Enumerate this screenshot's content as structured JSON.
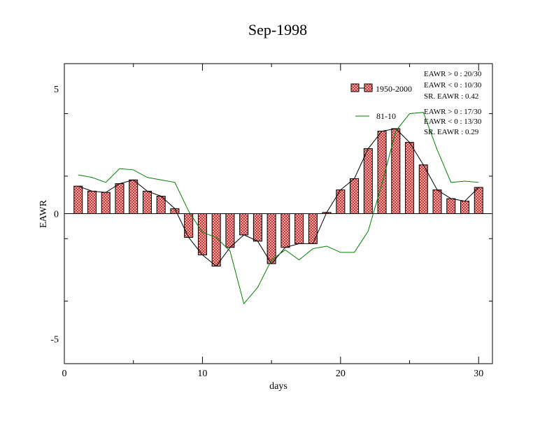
{
  "chart_data": {
    "type": "bar",
    "title": "Sep-1998",
    "xlabel": "days",
    "ylabel": "EAWR",
    "xlim": [
      0,
      31
    ],
    "ylim": [
      -6,
      6
    ],
    "x_ticks": [
      0,
      10,
      20,
      30
    ],
    "x_tick_labels": [
      "0",
      "10",
      "20",
      "30"
    ],
    "y_ticks": [
      -5,
      0,
      5
    ],
    "y_tick_labels": [
      "-5",
      "0",
      "5"
    ],
    "grid": false,
    "legend_position": "top-right",
    "x": [
      1,
      2,
      3,
      4,
      5,
      6,
      7,
      8,
      9,
      10,
      11,
      12,
      13,
      14,
      15,
      16,
      17,
      18,
      19,
      20,
      21,
      22,
      23,
      24,
      25,
      26,
      27,
      28,
      29,
      30
    ],
    "series": [
      {
        "name": "1950-2000",
        "kind": "bar",
        "color": "#e07070",
        "values": [
          1.1,
          0.9,
          0.85,
          1.2,
          1.35,
          0.9,
          0.7,
          0.2,
          -0.95,
          -1.65,
          -2.1,
          -1.35,
          -0.85,
          -1.1,
          -2.0,
          -1.35,
          -1.2,
          -1.2,
          0.05,
          0.95,
          1.4,
          2.6,
          3.3,
          3.4,
          2.85,
          1.95,
          0.95,
          0.6,
          0.5,
          1.05
        ]
      },
      {
        "name": "81-10",
        "kind": "line",
        "color": "#008000",
        "values": [
          1.55,
          1.45,
          1.25,
          1.8,
          1.75,
          1.45,
          1.35,
          1.25,
          0.1,
          -0.75,
          -0.95,
          -1.5,
          -3.6,
          -2.95,
          -1.85,
          -1.45,
          -1.85,
          -1.4,
          -1.3,
          -1.55,
          -1.55,
          -0.7,
          1.2,
          3.3,
          4.0,
          4.05,
          2.55,
          1.25,
          1.3,
          1.25
        ]
      }
    ],
    "stats": [
      {
        "pos": "EAWR > 0 : 20/30",
        "neg": "EAWR < 0 : 10/30",
        "sr": "SR. EAWR :  0.42"
      },
      {
        "pos": "EAWR > 0 : 17/30",
        "neg": "EAWR < 0 : 13/30",
        "sr": "SR. EAWR :  0.29"
      }
    ]
  }
}
